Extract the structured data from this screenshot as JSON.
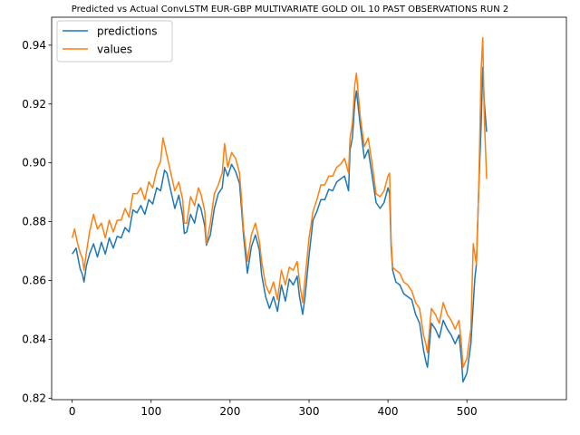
{
  "chart_data": {
    "type": "line",
    "title": "Predicted vs Actual ConvLSTM EUR-GBP MULTIVARIATE GOLD OIL 10 PAST OBSERVATIONS RUN 2",
    "xlabel": "",
    "ylabel": "",
    "xlim": [
      -26,
      626
    ],
    "ylim": [
      0.8195,
      0.9495
    ],
    "xticks": [
      0,
      100,
      200,
      300,
      400,
      500
    ],
    "yticks": [
      0.82,
      0.84,
      0.86,
      0.88,
      0.9,
      0.92,
      0.94
    ],
    "legend": {
      "position": "upper-left"
    },
    "grid": false,
    "series": [
      {
        "name": "predictions",
        "color": "#1f77b4",
        "points": [
          [
            0,
            0.869
          ],
          [
            5,
            0.871
          ],
          [
            10,
            0.864
          ],
          [
            13,
            0.862
          ],
          [
            15,
            0.8595
          ],
          [
            18,
            0.865
          ],
          [
            22,
            0.869
          ],
          [
            27,
            0.8725
          ],
          [
            32,
            0.868
          ],
          [
            37,
            0.873
          ],
          [
            42,
            0.869
          ],
          [
            47,
            0.8745
          ],
          [
            52,
            0.871
          ],
          [
            57,
            0.875
          ],
          [
            62,
            0.8745
          ],
          [
            67,
            0.878
          ],
          [
            72,
            0.8765
          ],
          [
            77,
            0.884
          ],
          [
            82,
            0.883
          ],
          [
            87,
            0.8855
          ],
          [
            92,
            0.8825
          ],
          [
            97,
            0.8875
          ],
          [
            102,
            0.886
          ],
          [
            107,
            0.8915
          ],
          [
            112,
            0.8905
          ],
          [
            117,
            0.8975
          ],
          [
            120,
            0.8965
          ],
          [
            125,
            0.8905
          ],
          [
            130,
            0.8845
          ],
          [
            135,
            0.889
          ],
          [
            140,
            0.882
          ],
          [
            142,
            0.876
          ],
          [
            145,
            0.8765
          ],
          [
            150,
            0.8825
          ],
          [
            155,
            0.8795
          ],
          [
            160,
            0.886
          ],
          [
            163,
            0.8845
          ],
          [
            168,
            0.8785
          ],
          [
            170,
            0.872
          ],
          [
            175,
            0.8755
          ],
          [
            180,
            0.8845
          ],
          [
            185,
            0.8895
          ],
          [
            190,
            0.8915
          ],
          [
            193,
            0.8985
          ],
          [
            197,
            0.8955
          ],
          [
            202,
            0.8995
          ],
          [
            207,
            0.897
          ],
          [
            212,
            0.893
          ],
          [
            214,
            0.886
          ],
          [
            217,
            0.8755
          ],
          [
            222,
            0.8625
          ],
          [
            227,
            0.8715
          ],
          [
            232,
            0.8755
          ],
          [
            237,
            0.8705
          ],
          [
            240,
            0.862
          ],
          [
            245,
            0.8545
          ],
          [
            250,
            0.8505
          ],
          [
            255,
            0.8545
          ],
          [
            260,
            0.8495
          ],
          [
            265,
            0.8585
          ],
          [
            270,
            0.853
          ],
          [
            275,
            0.8605
          ],
          [
            280,
            0.8585
          ],
          [
            285,
            0.8615
          ],
          [
            288,
            0.8545
          ],
          [
            292,
            0.8485
          ],
          [
            295,
            0.8545
          ],
          [
            300,
            0.8685
          ],
          [
            305,
            0.8805
          ],
          [
            310,
            0.8835
          ],
          [
            315,
            0.8875
          ],
          [
            320,
            0.8875
          ],
          [
            325,
            0.891
          ],
          [
            330,
            0.8905
          ],
          [
            335,
            0.8935
          ],
          [
            340,
            0.8945
          ],
          [
            345,
            0.8955
          ],
          [
            350,
            0.8905
          ],
          [
            352,
            0.9045
          ],
          [
            355,
            0.9085
          ],
          [
            358,
            0.9205
          ],
          [
            360,
            0.9245
          ],
          [
            365,
            0.9125
          ],
          [
            370,
            0.9015
          ],
          [
            375,
            0.9045
          ],
          [
            380,
            0.8955
          ],
          [
            385,
            0.8865
          ],
          [
            390,
            0.8845
          ],
          [
            395,
            0.8865
          ],
          [
            400,
            0.8915
          ],
          [
            402,
            0.8895
          ],
          [
            404,
            0.8715
          ],
          [
            406,
            0.8635
          ],
          [
            410,
            0.8595
          ],
          [
            415,
            0.8585
          ],
          [
            420,
            0.8555
          ],
          [
            425,
            0.8545
          ],
          [
            430,
            0.8535
          ],
          [
            435,
            0.8485
          ],
          [
            440,
            0.8455
          ],
          [
            445,
            0.8365
          ],
          [
            448,
            0.8325
          ],
          [
            450,
            0.8305
          ],
          [
            455,
            0.8455
          ],
          [
            460,
            0.8435
          ],
          [
            465,
            0.8405
          ],
          [
            470,
            0.8465
          ],
          [
            475,
            0.8435
          ],
          [
            480,
            0.8415
          ],
          [
            485,
            0.8385
          ],
          [
            490,
            0.8415
          ],
          [
            493,
            0.8335
          ],
          [
            495,
            0.8255
          ],
          [
            500,
            0.8285
          ],
          [
            505,
            0.8385
          ],
          [
            510,
            0.8605
          ],
          [
            512,
            0.8655
          ],
          [
            515,
            0.8915
          ],
          [
            518,
            0.9125
          ],
          [
            520,
            0.9325
          ],
          [
            522,
            0.9205
          ],
          [
            525,
            0.9105
          ]
        ]
      },
      {
        "name": "values",
        "color": "#ff7f0e",
        "points": [
          [
            0,
            0.8745
          ],
          [
            3,
            0.8775
          ],
          [
            7,
            0.8725
          ],
          [
            10,
            0.8695
          ],
          [
            13,
            0.8675
          ],
          [
            15,
            0.8635
          ],
          [
            18,
            0.8695
          ],
          [
            22,
            0.8765
          ],
          [
            27,
            0.8825
          ],
          [
            32,
            0.8775
          ],
          [
            37,
            0.8795
          ],
          [
            42,
            0.8745
          ],
          [
            47,
            0.8805
          ],
          [
            52,
            0.8765
          ],
          [
            57,
            0.8805
          ],
          [
            62,
            0.8805
          ],
          [
            67,
            0.8845
          ],
          [
            72,
            0.8815
          ],
          [
            77,
            0.8895
          ],
          [
            82,
            0.8895
          ],
          [
            87,
            0.8915
          ],
          [
            92,
            0.8875
          ],
          [
            97,
            0.8935
          ],
          [
            102,
            0.8915
          ],
          [
            107,
            0.8975
          ],
          [
            112,
            0.9005
          ],
          [
            115,
            0.9085
          ],
          [
            120,
            0.9025
          ],
          [
            125,
            0.8965
          ],
          [
            130,
            0.8905
          ],
          [
            135,
            0.8935
          ],
          [
            140,
            0.8875
          ],
          [
            142,
            0.8795
          ],
          [
            145,
            0.8795
          ],
          [
            150,
            0.8885
          ],
          [
            155,
            0.8855
          ],
          [
            160,
            0.8915
          ],
          [
            163,
            0.8895
          ],
          [
            168,
            0.8835
          ],
          [
            170,
            0.8725
          ],
          [
            175,
            0.8795
          ],
          [
            180,
            0.8895
          ],
          [
            185,
            0.8925
          ],
          [
            190,
            0.8965
          ],
          [
            193,
            0.9065
          ],
          [
            197,
            0.8985
          ],
          [
            202,
            0.9035
          ],
          [
            207,
            0.9015
          ],
          [
            212,
            0.8965
          ],
          [
            214,
            0.8895
          ],
          [
            217,
            0.8775
          ],
          [
            222,
            0.8665
          ],
          [
            227,
            0.8755
          ],
          [
            232,
            0.8795
          ],
          [
            237,
            0.8735
          ],
          [
            240,
            0.8665
          ],
          [
            245,
            0.8585
          ],
          [
            250,
            0.8555
          ],
          [
            255,
            0.8595
          ],
          [
            260,
            0.8535
          ],
          [
            265,
            0.8635
          ],
          [
            270,
            0.8585
          ],
          [
            275,
            0.8645
          ],
          [
            280,
            0.8635
          ],
          [
            285,
            0.8665
          ],
          [
            288,
            0.8595
          ],
          [
            292,
            0.8525
          ],
          [
            295,
            0.8605
          ],
          [
            300,
            0.8745
          ],
          [
            305,
            0.8835
          ],
          [
            310,
            0.8875
          ],
          [
            315,
            0.8925
          ],
          [
            320,
            0.8925
          ],
          [
            325,
            0.8955
          ],
          [
            330,
            0.8955
          ],
          [
            335,
            0.8985
          ],
          [
            340,
            0.8995
          ],
          [
            345,
            0.9015
          ],
          [
            350,
            0.8965
          ],
          [
            352,
            0.9085
          ],
          [
            355,
            0.9135
          ],
          [
            358,
            0.9265
          ],
          [
            360,
            0.9305
          ],
          [
            365,
            0.9155
          ],
          [
            370,
            0.9055
          ],
          [
            375,
            0.9085
          ],
          [
            380,
            0.8995
          ],
          [
            385,
            0.8895
          ],
          [
            390,
            0.8885
          ],
          [
            395,
            0.8905
          ],
          [
            400,
            0.8955
          ],
          [
            402,
            0.8965
          ],
          [
            404,
            0.8735
          ],
          [
            406,
            0.8645
          ],
          [
            410,
            0.8635
          ],
          [
            415,
            0.8625
          ],
          [
            420,
            0.8595
          ],
          [
            425,
            0.8585
          ],
          [
            430,
            0.8565
          ],
          [
            435,
            0.8525
          ],
          [
            440,
            0.8505
          ],
          [
            445,
            0.8415
          ],
          [
            448,
            0.8385
          ],
          [
            450,
            0.8355
          ],
          [
            455,
            0.8505
          ],
          [
            460,
            0.8485
          ],
          [
            465,
            0.8455
          ],
          [
            470,
            0.8525
          ],
          [
            475,
            0.8485
          ],
          [
            480,
            0.8465
          ],
          [
            485,
            0.8435
          ],
          [
            490,
            0.8465
          ],
          [
            493,
            0.8385
          ],
          [
            495,
            0.8305
          ],
          [
            500,
            0.8335
          ],
          [
            505,
            0.8435
          ],
          [
            508,
            0.8725
          ],
          [
            512,
            0.8655
          ],
          [
            515,
            0.8915
          ],
          [
            518,
            0.9315
          ],
          [
            520,
            0.9425
          ],
          [
            522,
            0.9155
          ],
          [
            525,
            0.8945
          ]
        ]
      }
    ]
  }
}
